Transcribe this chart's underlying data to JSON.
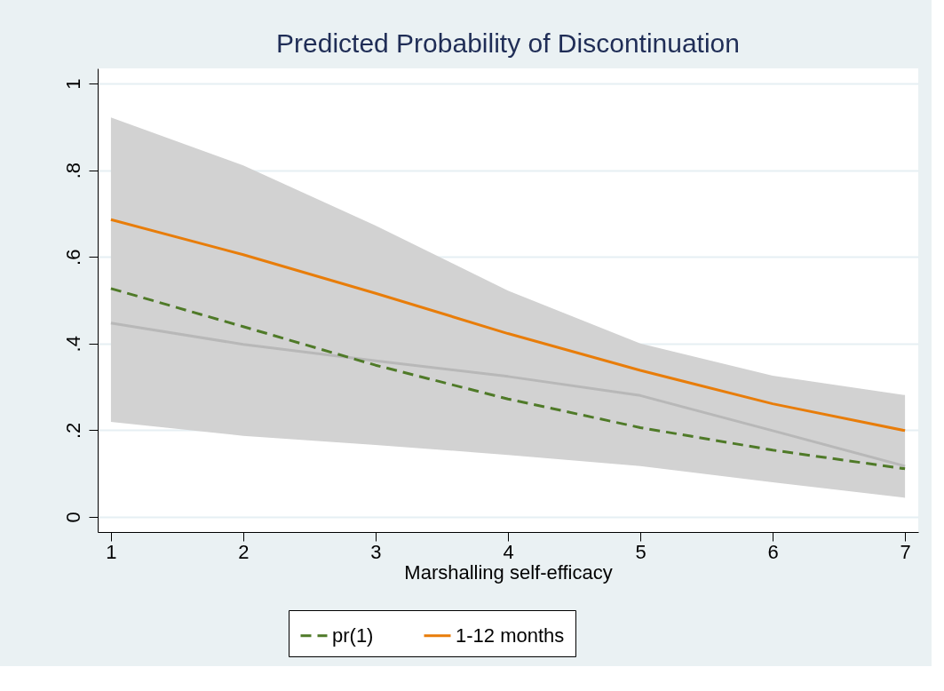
{
  "chart_data": {
    "type": "line",
    "title": "Predicted Probability of Discontinuation",
    "xlabel": "Marshalling self-efficacy",
    "x": [
      1,
      2,
      3,
      4,
      5,
      6,
      7
    ],
    "series": [
      {
        "color": "#b8b8b8",
        "values": [
          0.447,
          0.398,
          0.36,
          0.324,
          0.28,
          0.199,
          0.117
        ],
        "lower": [
          0.219,
          0.187,
          0.166,
          0.143,
          0.117,
          0.08,
          0.044
        ],
        "upper": [
          0.922,
          0.811,
          0.672,
          0.522,
          0.4,
          0.326,
          0.281
        ]
      },
      {
        "name": "pr(1)",
        "color": "#4f7a28",
        "line_style": "dashed",
        "values": [
          0.527,
          0.439,
          0.35,
          0.272,
          0.206,
          0.154,
          0.111
        ]
      },
      {
        "name": "1-12 months",
        "color": "#e87d0a",
        "line_style": "solid",
        "values": [
          0.686,
          0.605,
          0.516,
          0.423,
          0.338,
          0.261,
          0.199
        ]
      }
    ],
    "xlim": [
      0.9,
      7.1
    ],
    "xticks": [
      1,
      2,
      3,
      4,
      5,
      6,
      7
    ],
    "ylim": [
      -0.035,
      1.035
    ],
    "yticks": [
      0,
      {
        "value": 0.2,
        "label": ".2"
      },
      {
        "value": 0.4,
        "label": ".4"
      },
      {
        "value": 0.6,
        "label": ".6"
      },
      {
        "value": 0.8,
        "label": ".8"
      },
      1
    ],
    "grid": "y",
    "legend": "bottom",
    "marker": "none"
  }
}
